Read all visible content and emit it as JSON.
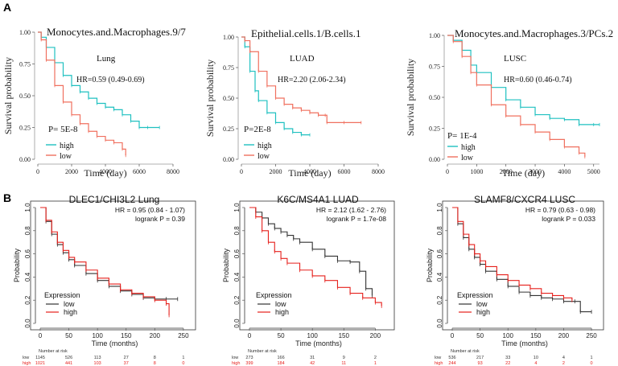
{
  "panel_labels": {
    "A": "A",
    "B": "B"
  },
  "colors": {
    "teal": "#1fc0c0",
    "salmon": "#f0705f",
    "red": "#e6201c",
    "black": "#333333"
  },
  "chart_data": [
    {
      "type": "line",
      "title": "Monocytes.and.Macrophages.9/7",
      "subtitle": "Lung",
      "hr_text": "HR=0.59 (0.49-0.69)",
      "p_text": "P= 5E-8",
      "xlabel": "Time (day)",
      "ylabel": "Survival probability",
      "xlim": [
        0,
        8000
      ],
      "ylim": [
        0,
        1
      ],
      "xticks": [
        "0",
        "2000",
        "4000",
        "6000",
        "8000"
      ],
      "yticks": [
        "0.00",
        "0.25",
        "0.50",
        "0.75",
        "1.00"
      ],
      "legend": [
        "high",
        "low"
      ],
      "series": [
        {
          "name": "high",
          "color": "#1fc0c0",
          "x": [
            0,
            200,
            500,
            1000,
            1500,
            2000,
            2500,
            3000,
            3500,
            4000,
            4500,
            5000,
            5500,
            6000,
            6500,
            7200
          ],
          "y": [
            1.0,
            0.96,
            0.88,
            0.76,
            0.66,
            0.58,
            0.53,
            0.48,
            0.44,
            0.41,
            0.39,
            0.35,
            0.3,
            0.25,
            0.25,
            0.25
          ]
        },
        {
          "name": "low",
          "color": "#f0705f",
          "x": [
            0,
            200,
            500,
            1000,
            1500,
            2000,
            2500,
            3000,
            3500,
            4000,
            4500,
            5000,
            5200
          ],
          "y": [
            1.0,
            0.94,
            0.78,
            0.58,
            0.45,
            0.35,
            0.28,
            0.22,
            0.18,
            0.15,
            0.13,
            0.08,
            0.03
          ]
        }
      ]
    },
    {
      "type": "line",
      "title": "Epithelial.cells.1/B.cells.1",
      "subtitle": "LUAD",
      "hr_text": "HR=2.20 (2.06-2.34)",
      "p_text": "P=2E-8",
      "xlabel": "Time (day)",
      "ylabel": "Survival probability",
      "xlim": [
        0,
        8000
      ],
      "ylim": [
        0,
        1
      ],
      "xticks": [
        "0",
        "2000",
        "4000",
        "6000",
        "8000"
      ],
      "yticks": [
        "0.00",
        "0.25",
        "0.50",
        "0.75",
        "1.00"
      ],
      "legend": [
        "high",
        "low"
      ],
      "series": [
        {
          "name": "high",
          "color": "#1fc0c0",
          "x": [
            0,
            200,
            500,
            800,
            1000,
            1500,
            2000,
            2500,
            3000,
            3500,
            4000
          ],
          "y": [
            1.0,
            0.92,
            0.72,
            0.56,
            0.48,
            0.38,
            0.3,
            0.25,
            0.22,
            0.2,
            0.2
          ]
        },
        {
          "name": "low",
          "color": "#f0705f",
          "x": [
            0,
            200,
            500,
            1000,
            1500,
            2000,
            2500,
            3000,
            3500,
            4000,
            4500,
            4900,
            5000,
            6000,
            7000
          ],
          "y": [
            1.0,
            0.97,
            0.88,
            0.72,
            0.6,
            0.5,
            0.45,
            0.42,
            0.4,
            0.38,
            0.36,
            0.36,
            0.3,
            0.3,
            0.3
          ]
        }
      ]
    },
    {
      "type": "line",
      "title": "Monocytes.and.Macrophages.3/PCs.2",
      "subtitle": "LUSC",
      "hr_text": "HR=0.60 (0.46-0.74)",
      "p_text": "P= 1E-4",
      "xlabel": "Time (day)",
      "ylabel": "Survival probability",
      "xlim": [
        0,
        5200
      ],
      "ylim": [
        0,
        1
      ],
      "xticks": [
        "0",
        "1000",
        "2000",
        "3000",
        "4000",
        "5000"
      ],
      "yticks": [
        "0.00",
        "0.25",
        "0.50",
        "0.75",
        "1.00"
      ],
      "legend": [
        "high",
        "low"
      ],
      "series": [
        {
          "name": "high",
          "color": "#1fc0c0",
          "x": [
            0,
            200,
            500,
            800,
            1000,
            1500,
            2000,
            2500,
            3000,
            3500,
            4000,
            4500,
            5000,
            5200
          ],
          "y": [
            1.0,
            0.96,
            0.88,
            0.76,
            0.7,
            0.58,
            0.48,
            0.42,
            0.36,
            0.33,
            0.32,
            0.28,
            0.28,
            0.28
          ]
        },
        {
          "name": "low",
          "color": "#f0705f",
          "x": [
            0,
            200,
            500,
            800,
            1000,
            1500,
            2000,
            2500,
            3000,
            3500,
            4000,
            4500,
            4700
          ],
          "y": [
            1.0,
            0.95,
            0.83,
            0.7,
            0.6,
            0.44,
            0.35,
            0.28,
            0.22,
            0.16,
            0.1,
            0.05,
            0.02
          ]
        }
      ]
    },
    {
      "type": "line",
      "title": "DLEC1/CHI3L2  Lung",
      "hr_text": "HR = 0.95 (0.84 - 1.07)",
      "p_text": "logrank P = 0.39",
      "xlabel": "Time (months)",
      "ylabel": "Probability",
      "xlim": [
        0,
        260
      ],
      "ylim": [
        0,
        1
      ],
      "xticks": [
        "0",
        "50",
        "100",
        "150",
        "200",
        "250"
      ],
      "yticks": [
        "0.0",
        "0.2",
        "0.4",
        "0.6",
        "0.8",
        "1.0"
      ],
      "legend_title": "Expression",
      "legend": [
        "low",
        "high"
      ],
      "risk_table": {
        "header": "Number at risk",
        "rows": [
          {
            "label": "low",
            "values": [
              "1145",
              "526",
              "113",
              "27",
              "8",
              "1"
            ]
          },
          {
            "label": "high",
            "values": [
              "1021",
              "441",
              "103",
              "37",
              "8",
              "0"
            ]
          }
        ]
      },
      "series": [
        {
          "name": "low",
          "color": "#333333",
          "x": [
            0,
            10,
            20,
            30,
            40,
            50,
            60,
            80,
            100,
            120,
            140,
            160,
            180,
            200,
            220,
            240
          ],
          "y": [
            1.0,
            0.88,
            0.77,
            0.68,
            0.61,
            0.55,
            0.5,
            0.43,
            0.37,
            0.32,
            0.28,
            0.25,
            0.22,
            0.21,
            0.21,
            0.21
          ]
        },
        {
          "name": "high",
          "color": "#e6201c",
          "x": [
            0,
            10,
            20,
            30,
            40,
            50,
            60,
            80,
            100,
            120,
            140,
            160,
            180,
            200,
            220,
            225
          ],
          "y": [
            1.0,
            0.89,
            0.79,
            0.7,
            0.63,
            0.57,
            0.53,
            0.46,
            0.39,
            0.34,
            0.29,
            0.26,
            0.23,
            0.2,
            0.17,
            0.07
          ]
        }
      ]
    },
    {
      "type": "line",
      "title": "K6C/MS4A1  LUAD",
      "hr_text": "HR = 2.12 (1.62 - 2.76)",
      "p_text": "logrank P = 1.7e-08",
      "xlabel": "Time (months)",
      "ylabel": "Probability",
      "xlim": [
        0,
        220
      ],
      "ylim": [
        0,
        1
      ],
      "xticks": [
        "0",
        "50",
        "100",
        "150",
        "200"
      ],
      "yticks": [
        "0.0",
        "0.2",
        "0.4",
        "0.6",
        "0.8",
        "1.0"
      ],
      "legend_title": "Expression",
      "legend": [
        "low",
        "high"
      ],
      "risk_table": {
        "header": "Number at risk",
        "rows": [
          {
            "label": "low",
            "values": [
              "273",
              "166",
              "31",
              "9",
              "2"
            ]
          },
          {
            "label": "high",
            "values": [
              "399",
              "184",
              "42",
              "11",
              "1"
            ]
          }
        ]
      },
      "series": [
        {
          "name": "low",
          "color": "#333333",
          "x": [
            0,
            10,
            20,
            30,
            40,
            50,
            60,
            70,
            80,
            100,
            120,
            140,
            160,
            175,
            185,
            195
          ],
          "y": [
            1.0,
            0.96,
            0.91,
            0.86,
            0.82,
            0.79,
            0.76,
            0.73,
            0.7,
            0.64,
            0.58,
            0.54,
            0.53,
            0.45,
            0.3,
            0.24
          ]
        },
        {
          "name": "high",
          "color": "#e6201c",
          "x": [
            0,
            10,
            20,
            30,
            40,
            50,
            60,
            80,
            100,
            120,
            140,
            160,
            180,
            200,
            210
          ],
          "y": [
            1.0,
            0.92,
            0.8,
            0.7,
            0.62,
            0.56,
            0.52,
            0.46,
            0.41,
            0.37,
            0.31,
            0.26,
            0.22,
            0.18,
            0.15
          ]
        }
      ]
    },
    {
      "type": "line",
      "title": "SLAMF8/CXCR4  LUSC",
      "hr_text": "HR = 0.79 (0.63 - 0.98)",
      "p_text": "logrank P = 0.033",
      "xlabel": "Time (months)",
      "ylabel": "Probability",
      "xlim": [
        0,
        260
      ],
      "ylim": [
        0,
        1
      ],
      "xticks": [
        "0",
        "50",
        "100",
        "150",
        "200",
        "250"
      ],
      "yticks": [
        "0.0",
        "0.2",
        "0.4",
        "0.6",
        "0.8",
        "1.0"
      ],
      "legend_title": "Expression",
      "legend": [
        "low",
        "high"
      ],
      "risk_table": {
        "header": "Number at risk",
        "rows": [
          {
            "label": "low",
            "values": [
              "536",
              "217",
              "33",
              "10",
              "4",
              "1"
            ]
          },
          {
            "label": "high",
            "values": [
              "244",
              "93",
              "22",
              "4",
              "2",
              "0"
            ]
          }
        ]
      },
      "series": [
        {
          "name": "low",
          "color": "#333333",
          "x": [
            0,
            10,
            20,
            30,
            40,
            50,
            60,
            80,
            100,
            120,
            140,
            160,
            180,
            200,
            220,
            230,
            250
          ],
          "y": [
            1.0,
            0.86,
            0.74,
            0.64,
            0.57,
            0.51,
            0.45,
            0.38,
            0.32,
            0.27,
            0.24,
            0.22,
            0.21,
            0.19,
            0.19,
            0.1,
            0.1
          ]
        },
        {
          "name": "high",
          "color": "#e6201c",
          "x": [
            0,
            10,
            20,
            30,
            40,
            50,
            60,
            80,
            100,
            120,
            140,
            160,
            180,
            200,
            215
          ],
          "y": [
            1.0,
            0.88,
            0.77,
            0.68,
            0.6,
            0.54,
            0.49,
            0.42,
            0.37,
            0.33,
            0.3,
            0.26,
            0.24,
            0.22,
            0.2
          ]
        }
      ]
    }
  ]
}
